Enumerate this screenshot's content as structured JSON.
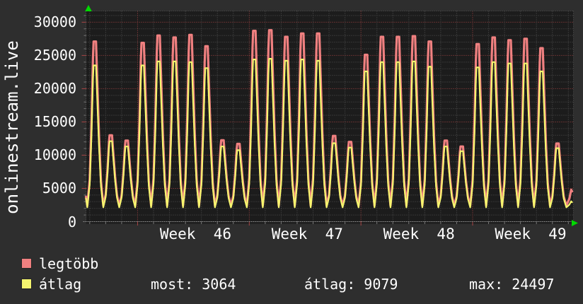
{
  "app": {
    "bg": "#2e2e2e",
    "plot_bg": "#1c1c1c",
    "text_color": "#ffffff",
    "arrow_color": "#00d900"
  },
  "vertical_title": "onlinestream.live",
  "chart_data": {
    "type": "line",
    "title": "onlinestream.live",
    "x_tick_labels": [
      "Week  46",
      "Week  47",
      "Week  48",
      "Week  49"
    ],
    "y_tick_values": [
      0,
      5000,
      10000,
      15000,
      20000,
      25000,
      30000
    ],
    "y_minor_step": 1000,
    "ylim": [
      0,
      31500
    ],
    "x_unit": "days (4+ weeks, one spike per day)",
    "grid": {
      "minor_color": "#4f4f4f",
      "major_color": "#a84444",
      "axis_color": "#8a8a8a"
    },
    "series": [
      {
        "name": "legtöbb",
        "role": "daily maximum",
        "color": "#f08080"
      },
      {
        "name": "átlag",
        "role": "daily average",
        "color": "#f5f56e"
      }
    ],
    "days": [
      {
        "max": 27100,
        "avg": 23500
      },
      {
        "max": 13000,
        "avg": 12100
      },
      {
        "max": 12200,
        "avg": 11300
      },
      {
        "max": 26900,
        "avg": 23500
      },
      {
        "max": 28000,
        "avg": 24100
      },
      {
        "max": 27700,
        "avg": 24100
      },
      {
        "max": 28100,
        "avg": 24000
      },
      {
        "max": 26400,
        "avg": 23100
      },
      {
        "max": 12250,
        "avg": 11300
      },
      {
        "max": 11700,
        "avg": 10750
      },
      {
        "max": 28700,
        "avg": 24400
      },
      {
        "max": 28800,
        "avg": 24497
      },
      {
        "max": 27800,
        "avg": 24200
      },
      {
        "max": 28300,
        "avg": 24400
      },
      {
        "max": 28300,
        "avg": 24200
      },
      {
        "max": 12900,
        "avg": 11800
      },
      {
        "max": 12000,
        "avg": 11150
      },
      {
        "max": 25100,
        "avg": 22600
      },
      {
        "max": 27800,
        "avg": 24000
      },
      {
        "max": 27800,
        "avg": 24000
      },
      {
        "max": 27900,
        "avg": 24100
      },
      {
        "max": 27100,
        "avg": 23300
      },
      {
        "max": 12200,
        "avg": 11300
      },
      {
        "max": 11300,
        "avg": 10600
      },
      {
        "max": 26700,
        "avg": 23200
      },
      {
        "max": 27700,
        "avg": 24000
      },
      {
        "max": 27300,
        "avg": 23800
      },
      {
        "max": 27500,
        "avg": 23800
      },
      {
        "max": 26100,
        "avg": 22600
      },
      {
        "max": 11750,
        "avg": 11050
      }
    ],
    "baseline_valley": {
      "max": 2400,
      "avg": 2150
    },
    "tail_current": {
      "max": 4800,
      "avg": 3064
    },
    "summary": {
      "most": 3064,
      "atlag": 9079,
      "max": 24497
    }
  },
  "legend": {
    "items": [
      {
        "label": "legtöbb",
        "color": "#f08080"
      },
      {
        "label": "átlag",
        "color": "#f5f56e"
      }
    ],
    "stats": [
      {
        "label": "most:",
        "value": "3064"
      },
      {
        "label": "átlag:",
        "value": "9079"
      },
      {
        "label": "max:",
        "value": "24497"
      }
    ]
  }
}
